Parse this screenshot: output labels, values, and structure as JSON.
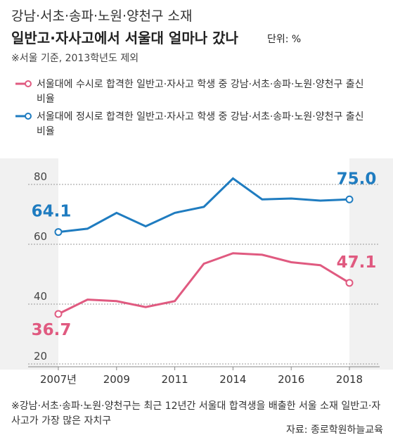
{
  "chart_data": {
    "type": "line",
    "title": "강남·서초·송파·노원·양천구 소재",
    "subtitle": "일반고·자사고에서 서울대 얼마나 갔나",
    "unit": "단위: %",
    "note": "※서울 기준, 2013학년도 제외",
    "categories": [
      "2007년",
      null,
      "2009",
      null,
      "2011",
      null,
      "2014",
      null,
      "2016",
      null,
      "2018"
    ],
    "series": [
      {
        "name": "서울대에 수시로 합격한 일반고·자사고 학생 중 강남·서초·송파·노원·양천구 출신 비율",
        "color": "#e05a80",
        "values": [
          36.7,
          41.5,
          41,
          39,
          41,
          53.5,
          57,
          56.5,
          54,
          53,
          47.1
        ],
        "value_labels": [
          "36.7",
          null,
          null,
          null,
          null,
          null,
          null,
          null,
          null,
          null,
          "47.1"
        ]
      },
      {
        "name": "서울대에 정시로 합격한 일반고·자사고 학생 중 강남·서초·송파·노원·양천구 출신 비율",
        "color": "#1f7cc0",
        "values": [
          64.1,
          65.2,
          70.5,
          66,
          70.5,
          72.5,
          82,
          75,
          75.3,
          74.6,
          75.0
        ],
        "value_labels": [
          "64.1",
          null,
          null,
          null,
          null,
          null,
          null,
          null,
          null,
          null,
          "75.0"
        ]
      }
    ],
    "ylim": [
      20,
      85
    ],
    "yticks": [
      20,
      40,
      60,
      80
    ],
    "grid": true,
    "footnote": "※강남·서초·송파·노원·양천구는 최근 12년간 서울대 합격생을 배출한 서울 소재 일반고·자사고가 가장 많은 자치구",
    "source": "자료: 종로학원하늘교육"
  }
}
